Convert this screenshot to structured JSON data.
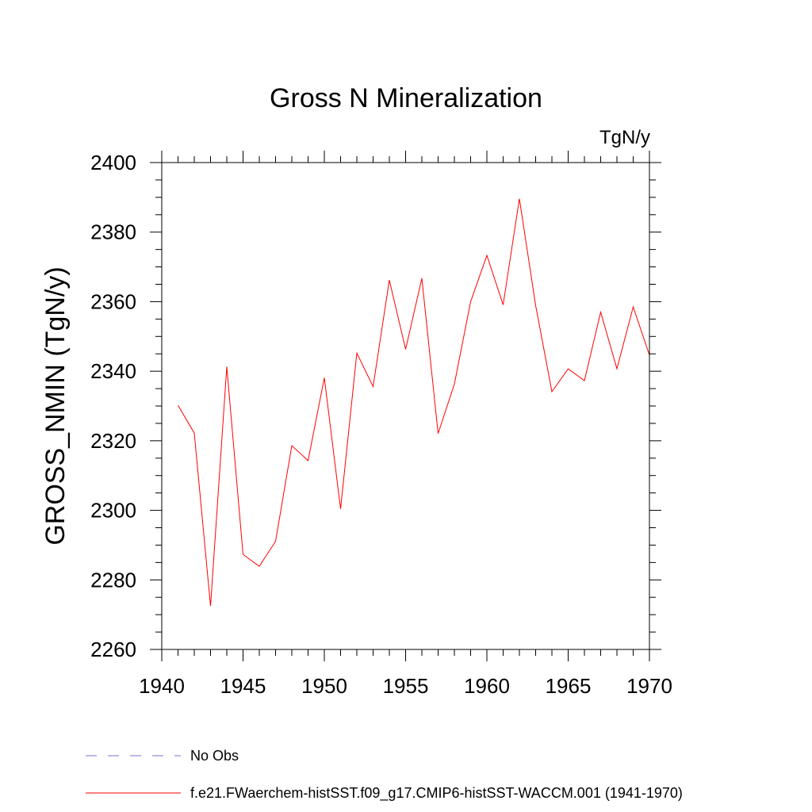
{
  "chart_data": {
    "type": "line",
    "title": "Gross N Mineralization",
    "units_label": "TgN/y",
    "xlabel": "",
    "ylabel": "GROSS_NMIN  (TgN/y)",
    "xlim": [
      1940,
      1970
    ],
    "ylim": [
      2260,
      2400
    ],
    "x_ticks": [
      1940,
      1945,
      1950,
      1955,
      1960,
      1965,
      1970
    ],
    "y_ticks": [
      2260,
      2280,
      2300,
      2320,
      2340,
      2360,
      2380,
      2400
    ],
    "grid": false,
    "legend_position": "bottom-left",
    "series": [
      {
        "name": "No Obs",
        "color": "#7b6fd6",
        "style": "dashed",
        "x": [],
        "values": []
      },
      {
        "name": "f.e21.FWaerchem-histSST.f09_g17.CMIP6-histSST-WACCM.001 (1941-1970)",
        "color": "#ff0000",
        "style": "solid",
        "x": [
          1941,
          1942,
          1943,
          1944,
          1945,
          1946,
          1947,
          1948,
          1949,
          1950,
          1951,
          1952,
          1953,
          1954,
          1955,
          1956,
          1957,
          1958,
          1959,
          1960,
          1961,
          1962,
          1963,
          1964,
          1965,
          1966,
          1967,
          1968,
          1969,
          1970
        ],
        "values": [
          2330.2,
          2322.2,
          2272.5,
          2341.3,
          2287.3,
          2283.9,
          2291.1,
          2318.6,
          2314.3,
          2338.1,
          2300.4,
          2345.2,
          2335.6,
          2366.2,
          2346.3,
          2366.7,
          2322.1,
          2336.3,
          2360.0,
          2373.3,
          2359.1,
          2389.6,
          2358.9,
          2334.1,
          2340.7,
          2337.3,
          2357.0,
          2340.7,
          2358.5,
          2344.6
        ]
      }
    ]
  }
}
